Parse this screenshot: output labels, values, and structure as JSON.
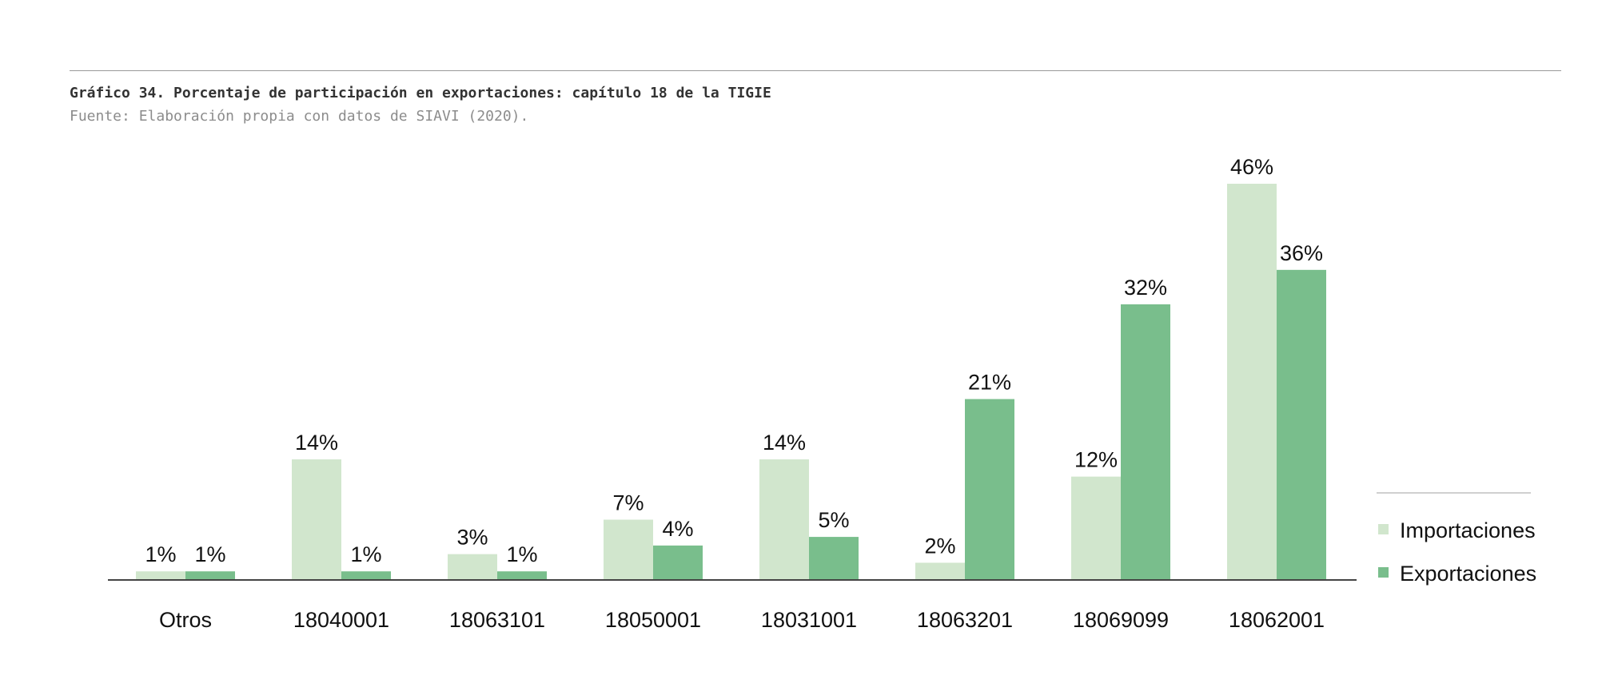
{
  "header": {
    "title": "Gráfico 34. Porcentaje de participación en exportaciones: capítulo 18 de la TIGIE",
    "source": "Fuente: Elaboración propia con datos de SIAVI (2020)."
  },
  "colors": {
    "importaciones": "#d1e6cd",
    "exportaciones": "#79be8c",
    "axis": "#444444",
    "rule": "#9a9a9a"
  },
  "chart_data": {
    "type": "bar",
    "categories": [
      "Otros",
      "18040001",
      "18063101",
      "18050001",
      "18031001",
      "18063201",
      "18069099",
      "18062001"
    ],
    "series": [
      {
        "name": "Importaciones",
        "values": [
          1,
          14,
          3,
          7,
          14,
          2,
          12,
          46
        ],
        "labels": [
          "1%",
          "14%",
          "3%",
          "7%",
          "14%",
          "2%",
          "12%",
          "46%"
        ]
      },
      {
        "name": "Exportaciones",
        "values": [
          1,
          1,
          1,
          4,
          5,
          21,
          32,
          36
        ],
        "labels": [
          "1%",
          "1%",
          "1%",
          "4%",
          "5%",
          "21%",
          "32%",
          "36%"
        ]
      }
    ],
    "ylim": [
      0,
      46
    ],
    "grid": false,
    "legend": "right"
  }
}
